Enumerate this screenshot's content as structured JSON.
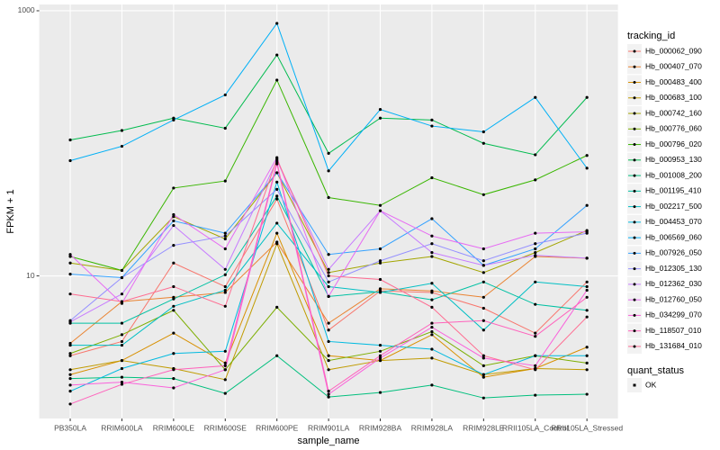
{
  "chart_data": {
    "type": "line",
    "x_label": "sample_name",
    "y_label": "FPKM + 1",
    "log_scale": true,
    "grid": true,
    "point_color": "#000000",
    "legend_title": "tracking_id",
    "shape_legend": {
      "title": "quant_status",
      "labels": [
        "OK"
      ]
    },
    "ylim": [
      0.84,
      1115
    ],
    "yticks": [
      10,
      1000
    ],
    "categories": [
      "PB350LA",
      "RRIM600LA",
      "RRIM600LE",
      "RRIM600SE",
      "RRIM600PE",
      "RRIM901LA",
      "RRIM928BA",
      "RRIM928LA",
      "RRIM928LE",
      "RRII105LA_Control",
      "RRII105LA_Stressed"
    ],
    "series": [
      {
        "name": "Hb_000062_090",
        "color": "#F8766D",
        "values": [
          2.5,
          3.2,
          12.5,
          8.3,
          38,
          3.9,
          7.7,
          7.5,
          5.7,
          3.7,
          9
        ]
      },
      {
        "name": "Hb_000407_070",
        "color": "#EA8331",
        "values": [
          3.1,
          6.4,
          6.9,
          7.5,
          18,
          4.4,
          8,
          7.7,
          6.9,
          14,
          13.6
        ]
      },
      {
        "name": "Hb_000483_400",
        "color": "#D89000",
        "values": [
          1.8,
          2.3,
          3.7,
          2.2,
          21,
          2.5,
          2.3,
          3.6,
          1.72,
          2,
          2.9
        ]
      },
      {
        "name": "Hb_000683_100",
        "color": "#C09B00",
        "values": [
          1.96,
          2.3,
          2,
          1.65,
          17.5,
          1.96,
          2.3,
          2.4,
          1.8,
          2,
          1.96
        ]
      },
      {
        "name": "Hb_000742_160",
        "color": "#A3A500",
        "values": [
          12.5,
          11,
          28,
          19,
          60,
          10.6,
          12.5,
          14,
          10.6,
          15,
          22
        ]
      },
      {
        "name": "Hb_000776_060",
        "color": "#7CAE00",
        "values": [
          2.6,
          3.6,
          5.5,
          1.96,
          5.8,
          2.3,
          2.7,
          3.8,
          2.1,
          2.5,
          2.2
        ]
      },
      {
        "name": "Hb_000796_020",
        "color": "#39B600",
        "values": [
          14,
          11,
          46,
          52,
          300,
          39,
          34,
          55,
          41,
          53,
          81
        ]
      },
      {
        "name": "Hb_000953_130",
        "color": "#00BB4E",
        "values": [
          106,
          125,
          155,
          130,
          464,
          84,
          155,
          150,
          100,
          82,
          222
        ]
      },
      {
        "name": "Hb_001008_200",
        "color": "#00BF7D",
        "values": [
          1.68,
          1.72,
          1.68,
          1.3,
          2.5,
          1.22,
          1.32,
          1.5,
          1.2,
          1.26,
          1.28
        ]
      },
      {
        "name": "Hb_001195_410",
        "color": "#00C1A3",
        "values": [
          4.4,
          4.4,
          6.7,
          10.2,
          40,
          7,
          7.6,
          6.6,
          9,
          6.1,
          5.5
        ]
      },
      {
        "name": "Hb_002217_500",
        "color": "#00BFC4",
        "values": [
          3,
          3,
          5.9,
          7.8,
          25,
          8.3,
          7.5,
          8.8,
          3.9,
          9,
          8.3
        ]
      },
      {
        "name": "Hb_004453_070",
        "color": "#00BAE0",
        "values": [
          1.35,
          2,
          2.6,
          2.7,
          51,
          3.2,
          3,
          2.8,
          1.8,
          2.5,
          2.5
        ]
      },
      {
        "name": "Hb_006569_060",
        "color": "#00B0F6",
        "values": [
          74,
          95,
          150,
          232,
          803,
          62,
          180,
          135,
          122,
          222,
          65
        ]
      },
      {
        "name": "Hb_007926_050",
        "color": "#35A2FF",
        "values": [
          10.3,
          9.7,
          26,
          21,
          60,
          14.5,
          16,
          27,
          12,
          16,
          34
        ]
      },
      {
        "name": "Hb_012305_130",
        "color": "#9590FF",
        "values": [
          4.6,
          9.7,
          17,
          20,
          45,
          9,
          13,
          17.5,
          13,
          17.5,
          21
        ]
      },
      {
        "name": "Hb_012362_030",
        "color": "#C77CFF",
        "values": [
          4.5,
          7.3,
          24,
          11.2,
          74,
          11.2,
          31,
          15,
          12,
          14.3,
          13.6
        ]
      },
      {
        "name": "Hb_012760_050",
        "color": "#E76BF3",
        "values": [
          14.5,
          6.2,
          29,
          16,
          78,
          7,
          31,
          20,
          16,
          21,
          21.5
        ]
      },
      {
        "name": "Hb_034299_070",
        "color": "#FA62DB",
        "values": [
          1.5,
          1.58,
          1.43,
          1.96,
          70,
          1.28,
          2.4,
          4.1,
          2.4,
          2.1,
          7.8
        ]
      },
      {
        "name": "Hb_118507_010",
        "color": "#FF62BC",
        "values": [
          1.08,
          1.52,
          1.96,
          2.1,
          72,
          1.35,
          2.5,
          4.4,
          4.6,
          3.5,
          6.9
        ]
      },
      {
        "name": "Hb_131684_010",
        "color": "#FF6C91",
        "values": [
          7.3,
          6.4,
          8.3,
          5.9,
          76,
          10,
          9.4,
          5.8,
          2.5,
          1.96,
          4.9
        ]
      }
    ]
  }
}
